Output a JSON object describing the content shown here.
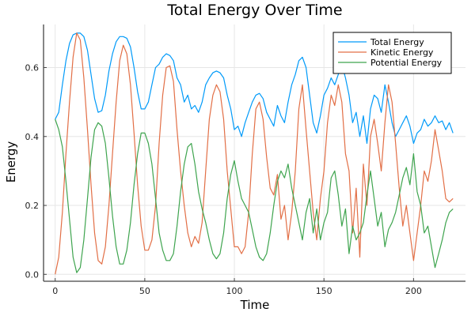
{
  "chart_data": {
    "type": "line",
    "title": "Total Energy Over Time",
    "xlabel": "Time",
    "ylabel": "Energy",
    "xlim": [
      -6.5,
      229
    ],
    "ylim": [
      -0.02,
      0.725
    ],
    "xticks": [
      0,
      50,
      100,
      150,
      200
    ],
    "xtick_labels": [
      "0",
      "50",
      "100",
      "150",
      "200"
    ],
    "yticks": [
      0.0,
      0.2,
      0.4,
      0.6
    ],
    "ytick_labels": [
      "0.0",
      "0.2",
      "0.4",
      "0.6"
    ],
    "grid": true,
    "legend_position": "top-right",
    "x": [
      0,
      2,
      4,
      6,
      8,
      10,
      12,
      14,
      16,
      18,
      20,
      22,
      24,
      26,
      28,
      30,
      32,
      34,
      36,
      38,
      40,
      42,
      44,
      46,
      48,
      50,
      52,
      54,
      56,
      58,
      60,
      62,
      64,
      66,
      68,
      70,
      72,
      74,
      76,
      78,
      80,
      82,
      84,
      86,
      88,
      90,
      92,
      94,
      96,
      98,
      100,
      102,
      104,
      106,
      108,
      110,
      112,
      114,
      116,
      118,
      120,
      122,
      124,
      126,
      128,
      130,
      132,
      134,
      136,
      138,
      140,
      142,
      144,
      146,
      148,
      150,
      152,
      154,
      156,
      158,
      160,
      162,
      164,
      166,
      168,
      170,
      172,
      174,
      176,
      178,
      180,
      182,
      184,
      186,
      188,
      190,
      192,
      194,
      196,
      198,
      200,
      202,
      204,
      206,
      208,
      210,
      212,
      214,
      216,
      218,
      220,
      222
    ],
    "series": [
      {
        "name": "Total Energy",
        "color": "#009af9",
        "values": [
          0.45,
          0.47,
          0.55,
          0.62,
          0.67,
          0.695,
          0.7,
          0.7,
          0.69,
          0.65,
          0.58,
          0.51,
          0.47,
          0.475,
          0.52,
          0.59,
          0.64,
          0.675,
          0.69,
          0.69,
          0.685,
          0.66,
          0.6,
          0.53,
          0.48,
          0.48,
          0.5,
          0.55,
          0.6,
          0.61,
          0.63,
          0.64,
          0.635,
          0.62,
          0.57,
          0.55,
          0.5,
          0.52,
          0.48,
          0.49,
          0.47,
          0.5,
          0.55,
          0.57,
          0.585,
          0.59,
          0.585,
          0.57,
          0.52,
          0.48,
          0.42,
          0.43,
          0.4,
          0.44,
          0.47,
          0.5,
          0.52,
          0.525,
          0.51,
          0.47,
          0.45,
          0.43,
          0.49,
          0.46,
          0.44,
          0.5,
          0.55,
          0.58,
          0.62,
          0.63,
          0.6,
          0.52,
          0.44,
          0.41,
          0.46,
          0.52,
          0.54,
          0.57,
          0.55,
          0.58,
          0.61,
          0.57,
          0.52,
          0.44,
          0.47,
          0.4,
          0.46,
          0.38,
          0.48,
          0.52,
          0.51,
          0.47,
          0.55,
          0.5,
          0.44,
          0.4,
          0.42,
          0.44,
          0.46,
          0.43,
          0.38,
          0.41,
          0.42,
          0.45,
          0.43,
          0.44,
          0.46,
          0.44,
          0.445,
          0.42,
          0.44,
          0.41
        ]
      },
      {
        "name": "Kinetic Energy",
        "color": "#e26f46",
        "values": [
          0.0,
          0.05,
          0.18,
          0.35,
          0.5,
          0.63,
          0.7,
          0.68,
          0.57,
          0.42,
          0.26,
          0.12,
          0.04,
          0.03,
          0.08,
          0.2,
          0.35,
          0.5,
          0.62,
          0.665,
          0.64,
          0.55,
          0.41,
          0.26,
          0.14,
          0.07,
          0.07,
          0.1,
          0.2,
          0.38,
          0.52,
          0.6,
          0.605,
          0.56,
          0.42,
          0.3,
          0.2,
          0.12,
          0.08,
          0.11,
          0.09,
          0.15,
          0.3,
          0.45,
          0.52,
          0.55,
          0.53,
          0.45,
          0.3,
          0.19,
          0.08,
          0.08,
          0.06,
          0.08,
          0.18,
          0.35,
          0.48,
          0.5,
          0.45,
          0.34,
          0.25,
          0.23,
          0.29,
          0.16,
          0.2,
          0.1,
          0.18,
          0.3,
          0.48,
          0.55,
          0.42,
          0.3,
          0.18,
          0.1,
          0.22,
          0.3,
          0.44,
          0.52,
          0.49,
          0.55,
          0.5,
          0.35,
          0.3,
          0.12,
          0.25,
          0.05,
          0.32,
          0.2,
          0.4,
          0.45,
          0.38,
          0.3,
          0.44,
          0.55,
          0.5,
          0.38,
          0.25,
          0.14,
          0.2,
          0.12,
          0.04,
          0.12,
          0.2,
          0.3,
          0.27,
          0.33,
          0.42,
          0.36,
          0.3,
          0.22,
          0.21,
          0.22
        ]
      },
      {
        "name": "Potential Energy",
        "color": "#3ea44e",
        "values": [
          0.45,
          0.42,
          0.37,
          0.27,
          0.16,
          0.05,
          0.005,
          0.02,
          0.1,
          0.22,
          0.34,
          0.42,
          0.44,
          0.43,
          0.38,
          0.28,
          0.17,
          0.08,
          0.03,
          0.03,
          0.07,
          0.15,
          0.26,
          0.35,
          0.41,
          0.41,
          0.38,
          0.32,
          0.22,
          0.12,
          0.07,
          0.04,
          0.04,
          0.06,
          0.14,
          0.24,
          0.32,
          0.37,
          0.38,
          0.32,
          0.24,
          0.19,
          0.15,
          0.1,
          0.06,
          0.045,
          0.06,
          0.12,
          0.22,
          0.29,
          0.33,
          0.27,
          0.22,
          0.2,
          0.18,
          0.13,
          0.08,
          0.05,
          0.04,
          0.06,
          0.12,
          0.2,
          0.27,
          0.3,
          0.28,
          0.32,
          0.25,
          0.2,
          0.15,
          0.1,
          0.18,
          0.22,
          0.12,
          0.19,
          0.1,
          0.15,
          0.18,
          0.28,
          0.3,
          0.23,
          0.14,
          0.19,
          0.06,
          0.14,
          0.1,
          0.12,
          0.15,
          0.23,
          0.3,
          0.22,
          0.14,
          0.18,
          0.08,
          0.13,
          0.15,
          0.18,
          0.23,
          0.28,
          0.31,
          0.26,
          0.35,
          0.24,
          0.2,
          0.12,
          0.14,
          0.08,
          0.02,
          0.06,
          0.1,
          0.15,
          0.18,
          0.19
        ]
      }
    ]
  }
}
